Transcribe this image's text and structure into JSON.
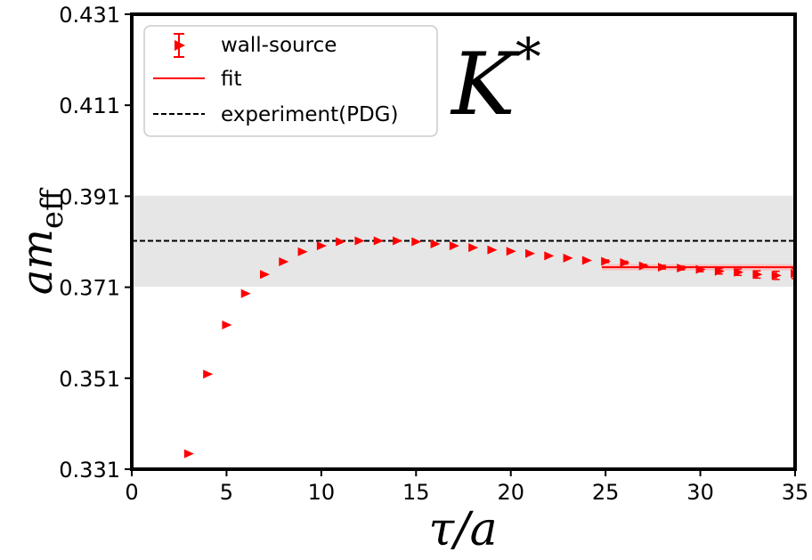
{
  "chart_data": {
    "type": "scatter",
    "title": "",
    "annotation": {
      "base": "K",
      "superscript": "*"
    },
    "xlabel": "τ/a",
    "ylabel": {
      "main": "am",
      "subscript": "eff"
    },
    "xlim": [
      0,
      35
    ],
    "ylim": [
      0.331,
      0.431
    ],
    "xticks": [
      0,
      5,
      10,
      15,
      20,
      25,
      30,
      35
    ],
    "yticks": [
      0.331,
      0.351,
      0.371,
      0.391,
      0.411,
      0.431
    ],
    "ytick_labels": [
      "0.331",
      "0.351",
      "0.371",
      "0.391",
      "0.411",
      "0.431"
    ],
    "legend": {
      "position": "top-left",
      "entries": [
        {
          "label": "wall-source",
          "style": "red-triangle-errorbar"
        },
        {
          "label": "fit",
          "style": "red-solid-line"
        },
        {
          "label": "experiment(PDG)",
          "style": "black-dashed-line"
        }
      ]
    },
    "experiment": {
      "value": 0.3812,
      "band": [
        0.3711,
        0.3911
      ],
      "color": "#000000",
      "band_color": "#e6e6e6"
    },
    "fit": {
      "value": 0.3754,
      "x_range": [
        24.8,
        35
      ],
      "error": 0.0007,
      "color": "#ff0000"
    },
    "series": [
      {
        "name": "wall-source",
        "color": "#ff0000",
        "x": [
          3,
          4,
          5,
          6,
          7,
          8,
          9,
          10,
          11,
          12,
          13,
          14,
          15,
          16,
          17,
          18,
          19,
          20,
          21,
          22,
          23,
          24,
          25,
          26,
          27,
          28,
          29,
          30,
          31,
          32,
          33,
          34,
          35
        ],
        "y": [
          0.3344,
          0.3519,
          0.3627,
          0.3696,
          0.3738,
          0.3766,
          0.3788,
          0.3801,
          0.381,
          0.3812,
          0.3812,
          0.3812,
          0.381,
          0.3805,
          0.3801,
          0.3797,
          0.3792,
          0.3789,
          0.3784,
          0.3779,
          0.3774,
          0.3769,
          0.3767,
          0.3764,
          0.3757,
          0.3754,
          0.3752,
          0.3749,
          0.3745,
          0.3743,
          0.3738,
          0.3736,
          0.374
        ],
        "yerr": [
          0.0001,
          0.0001,
          0.0001,
          0.0001,
          0.0001,
          0.0001,
          0.0001,
          0.0001,
          0.0001,
          0.0001,
          0.0001,
          0.0001,
          0.0001,
          0.0001,
          0.0001,
          0.0001,
          0.0001,
          0.0001,
          0.0002,
          0.0002,
          0.0002,
          0.0002,
          0.0003,
          0.0003,
          0.0003,
          0.0004,
          0.0004,
          0.0005,
          0.0006,
          0.0007,
          0.0008,
          0.0009,
          0.0011
        ]
      }
    ]
  }
}
